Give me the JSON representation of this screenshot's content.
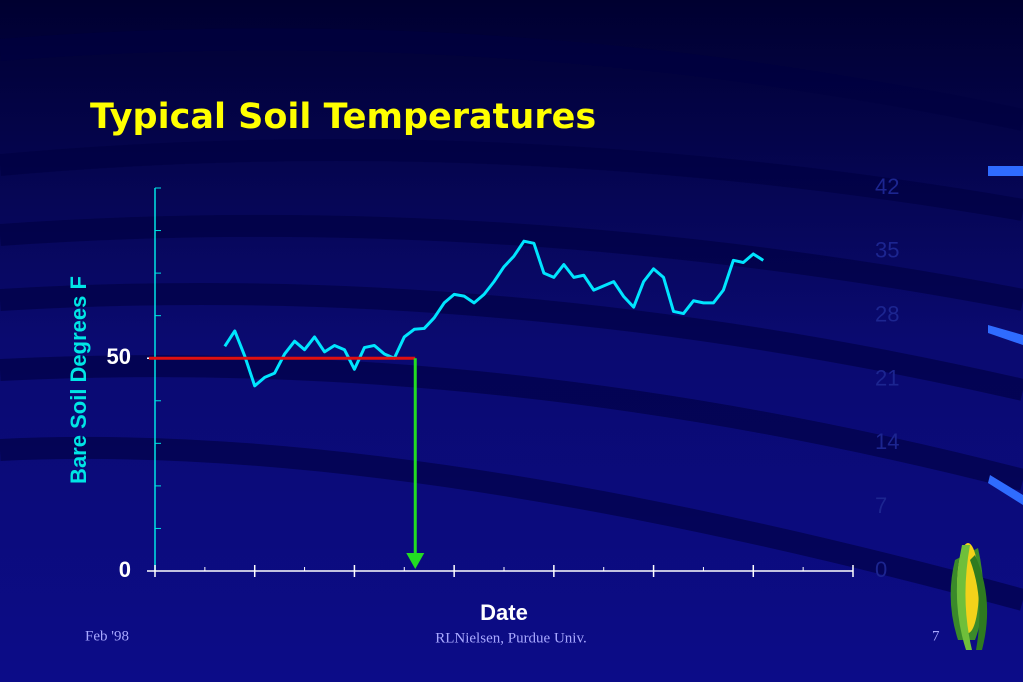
{
  "chart_data": {
    "type": "line",
    "title": "Typical Soil Temperatures",
    "y_label": "Bare Soil Degrees F",
    "x_label": "Date",
    "x": [
      7,
      8,
      9,
      10,
      11,
      12,
      13,
      14,
      15,
      16,
      17,
      18,
      19,
      20,
      21,
      22,
      23,
      24,
      25,
      26,
      27,
      28,
      29,
      30,
      31,
      32,
      33,
      34,
      35,
      36,
      37,
      38,
      39,
      40,
      41,
      42,
      43,
      44,
      45,
      46,
      47,
      48,
      49,
      50,
      51,
      52,
      53,
      54,
      55,
      56,
      57,
      58,
      59,
      60,
      61
    ],
    "series": [
      {
        "color": "#00e5ff",
        "values": [
          52.8,
          56.4,
          50.5,
          43.5,
          45.5,
          46.5,
          51,
          54,
          52,
          55,
          51.5,
          53,
          52,
          47.4,
          52.5,
          53,
          51,
          50,
          55,
          56.8,
          57,
          59.5,
          63,
          65,
          64.6,
          63,
          65,
          68,
          71.5,
          74,
          77.5,
          77,
          70,
          69,
          72,
          69,
          69.5,
          66,
          67,
          68,
          64.5,
          62,
          68,
          71,
          69,
          61,
          60.5,
          63.5,
          63,
          63,
          66,
          73,
          72.5,
          74.5,
          73
        ]
      }
    ],
    "xlim": [
      0,
      70
    ],
    "xticks": [
      0,
      10,
      20,
      30,
      40,
      50,
      60,
      70
    ],
    "xminorticks": [
      5,
      15,
      25,
      35,
      45,
      55,
      65
    ],
    "ylim": [
      0,
      90
    ],
    "yticks": [
      0,
      50
    ],
    "yminorticks": [
      10,
      20,
      30,
      40,
      60,
      70,
      80,
      90
    ],
    "y2lim": [
      0,
      42
    ],
    "y2ticks": [
      0,
      7,
      14,
      21,
      28,
      35,
      42
    ],
    "threshold": {
      "value": 50,
      "x_end": 26.1,
      "line_color": "#e01010",
      "arrow_color": "#22dd22"
    }
  },
  "slide": {
    "date": "Feb '98",
    "author": "RLNielsen, Purdue Univ.",
    "page": "7"
  }
}
